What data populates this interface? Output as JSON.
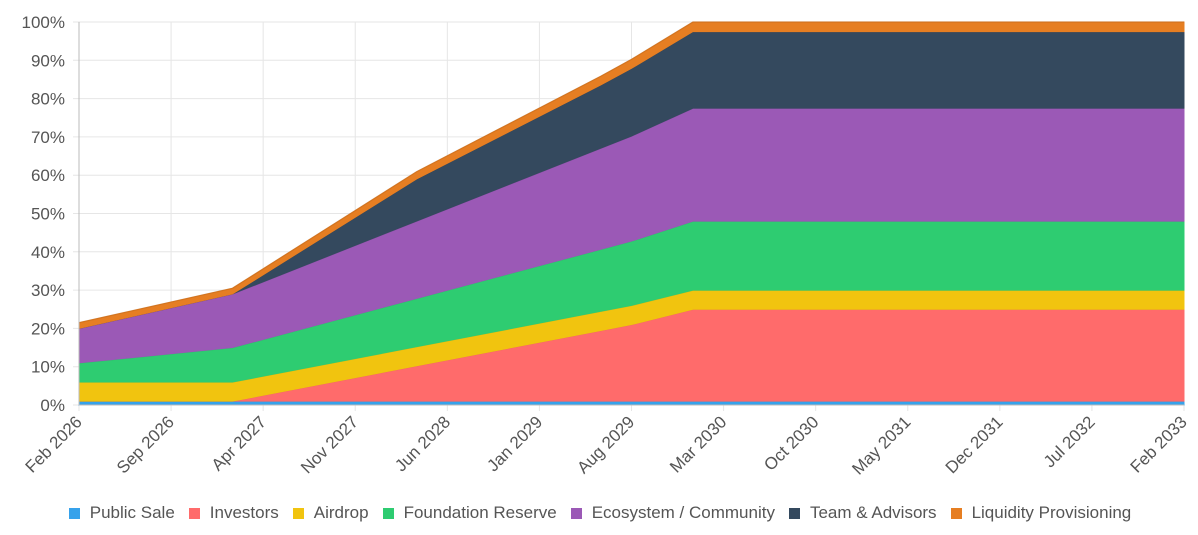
{
  "chart_data": {
    "type": "area",
    "stacked": true,
    "x": [
      "Feb 2026",
      "Sep 2026",
      "Apr 2027",
      "Nov 2027",
      "Jun 2028",
      "Jan 2029",
      "Aug 2029",
      "Mar 2030",
      "Oct 2030",
      "May 2031",
      "Dec 2031",
      "Jul 2032",
      "Feb 2033"
    ],
    "x_points": [
      0,
      6,
      12,
      18,
      24,
      30,
      36,
      42,
      48,
      54,
      60,
      66,
      72
    ],
    "y_axis": {
      "min": 0,
      "max": 100,
      "step": 10,
      "tick_suffix": "%",
      "ticks": [
        "0%",
        "10%",
        "20%",
        "30%",
        "40%",
        "50%",
        "60%",
        "70%",
        "80%",
        "90%",
        "100%"
      ]
    },
    "grid": true,
    "legend_position": "bottom",
    "series": [
      {
        "name": "Public Sale",
        "color": "#36a2eb",
        "points": [
          [
            0,
            1
          ],
          [
            72,
            1
          ]
        ]
      },
      {
        "name": "Investors",
        "color": "#ff6b6b",
        "points": [
          [
            0,
            0
          ],
          [
            10,
            0
          ],
          [
            36,
            20
          ],
          [
            40,
            24
          ],
          [
            72,
            24
          ]
        ]
      },
      {
        "name": "Airdrop",
        "color": "#f1c40f",
        "points": [
          [
            0,
            5
          ],
          [
            10,
            5
          ],
          [
            40,
            5
          ],
          [
            72,
            5
          ]
        ]
      },
      {
        "name": "Foundation Reserve",
        "color": "#2ecc71",
        "points": [
          [
            0,
            5
          ],
          [
            10,
            9
          ],
          [
            40,
            18
          ],
          [
            72,
            18
          ]
        ]
      },
      {
        "name": "Ecosystem / Community",
        "color": "#9b59b6",
        "points": [
          [
            0,
            9
          ],
          [
            10,
            14
          ],
          [
            40,
            29.5
          ],
          [
            72,
            29.5
          ]
        ]
      },
      {
        "name": "Team & Advisors",
        "color": "#34495e",
        "points": [
          [
            0,
            0
          ],
          [
            10,
            0
          ],
          [
            22,
            11
          ],
          [
            34,
            16.5
          ],
          [
            40,
            20
          ],
          [
            72,
            20
          ]
        ]
      },
      {
        "name": "Liquidity Provisioning",
        "color": "#e67e22",
        "points": [
          [
            0,
            1.5
          ],
          [
            10,
            1.5
          ],
          [
            40,
            2.5
          ],
          [
            72,
            2.5
          ]
        ]
      }
    ]
  }
}
